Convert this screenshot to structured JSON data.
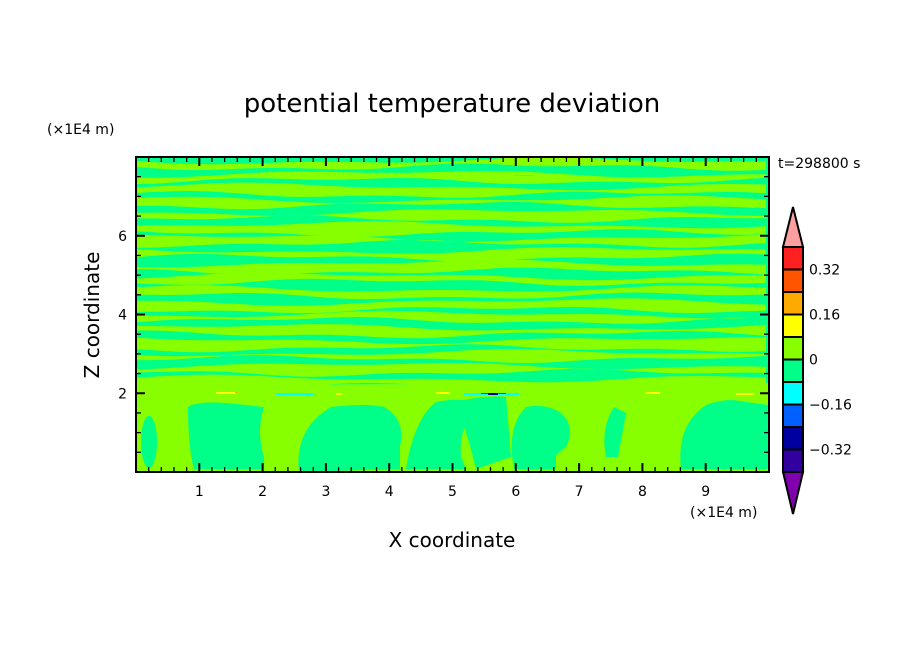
{
  "chart_data": {
    "type": "heatmap",
    "title": "potential temperature deviation",
    "xlabel": "X coordinate",
    "ylabel": "Z coordinate",
    "x_unit": "(×1E4 m)",
    "y_unit": "(×1E4 m)",
    "time_label": "t=298800 s",
    "xlim": [
      0,
      10
    ],
    "ylim": [
      0,
      8
    ],
    "x_ticks": [
      1,
      2,
      3,
      4,
      5,
      6,
      7,
      8,
      9
    ],
    "y_ticks": [
      2,
      4,
      6
    ],
    "x_tick_labels": [
      "1",
      "2",
      "3",
      "4",
      "5",
      "6",
      "7",
      "8",
      "9"
    ],
    "y_tick_labels": [
      "2",
      "4",
      "6"
    ],
    "grid": false,
    "colorbar": {
      "levels": [
        -0.4,
        -0.32,
        -0.24,
        -0.16,
        -0.08,
        0,
        0.08,
        0.16,
        0.24,
        0.32,
        0.4
      ],
      "labels": [
        "0.32",
        "0.16",
        "0",
        "-0.16",
        "-0.32"
      ],
      "label_values": [
        0.32,
        0.16,
        0,
        -0.16,
        -0.32
      ],
      "colors_top_to_bottom": [
        "#ffa0a0",
        "#ff2020",
        "#ff5500",
        "#ffaa00",
        "#ffff00",
        "#88ff00",
        "#00ff88",
        "#00ffff",
        "#0060ff",
        "#0000a0",
        "#3300a0",
        "#8000b0"
      ],
      "placement": "right"
    },
    "dominant_colors": {
      "near_zero_negative": "#00ff88",
      "near_zero_positive": "#88ff00"
    }
  }
}
